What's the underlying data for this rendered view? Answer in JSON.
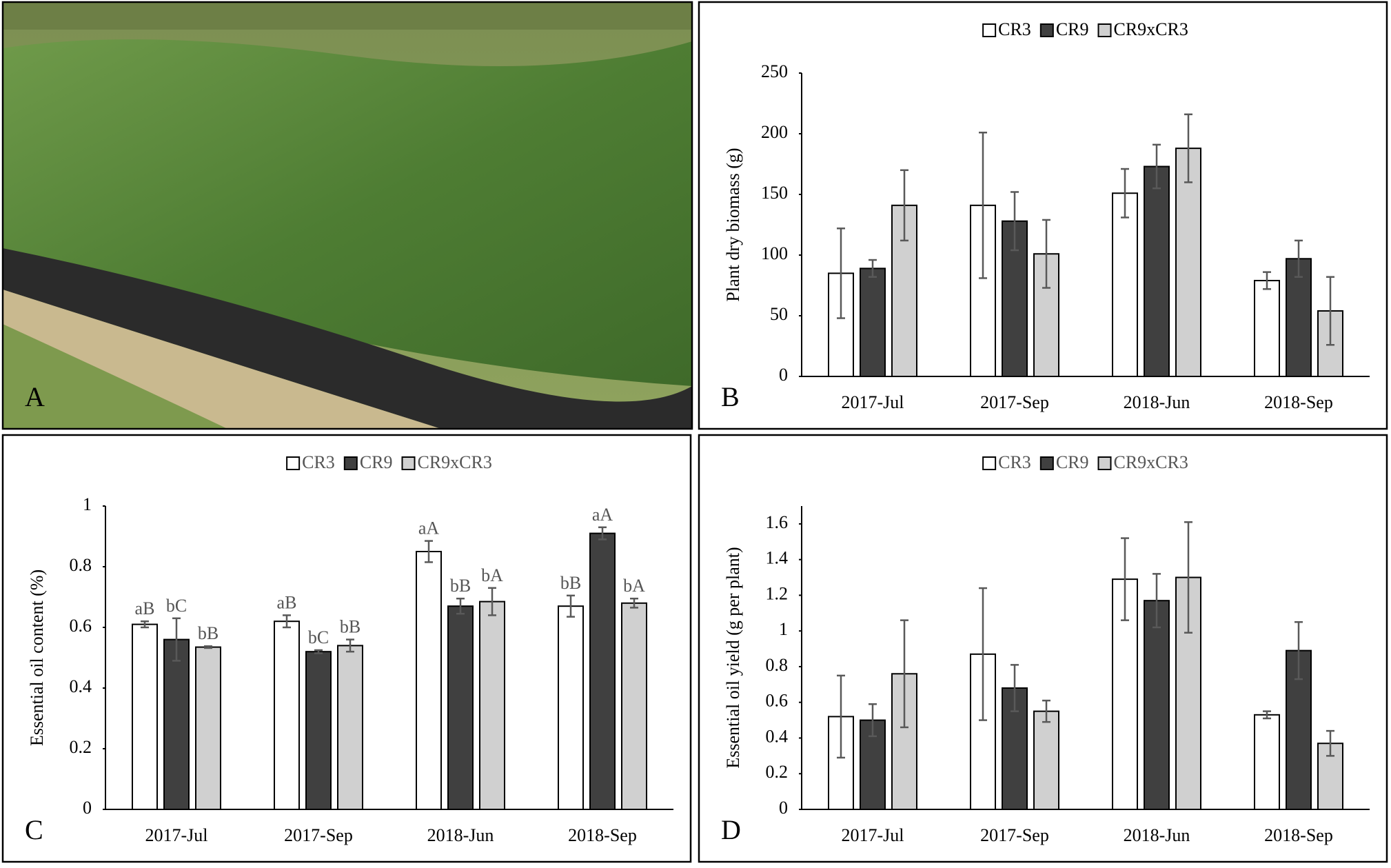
{
  "photo": {
    "label": "A"
  },
  "chart_data": [
    {
      "type": "bar",
      "panel_label": "B",
      "y_label": "Plant dry biomass (g)",
      "categories": [
        "2017-Jul",
        "2017-Sep",
        "2018-Jun",
        "2018-Sep"
      ],
      "ylim": [
        0,
        250
      ],
      "yticks": [
        0,
        50,
        100,
        150,
        200,
        250
      ],
      "legend": "top",
      "legend_text_color": "#000000",
      "error_color": "#595959",
      "series": [
        {
          "name": "CR3",
          "color": "#ffffff",
          "values": [
            85,
            141,
            151,
            79
          ],
          "errors": [
            37,
            60,
            20,
            7
          ]
        },
        {
          "name": "CR9",
          "color": "#404040",
          "values": [
            89,
            128,
            173,
            97
          ],
          "errors": [
            7,
            24,
            18,
            15
          ]
        },
        {
          "name": "CR9xCR3",
          "color": "#d0d0d0",
          "values": [
            141,
            101,
            188,
            54
          ],
          "errors": [
            29,
            28,
            28,
            28
          ]
        }
      ]
    },
    {
      "type": "bar",
      "panel_label": "C",
      "y_label": "Essential oil content (%)",
      "categories": [
        "2017-Jul",
        "2017-Sep",
        "2018-Jun",
        "2018-Sep"
      ],
      "ylim": [
        0,
        1
      ],
      "yticks": [
        0,
        0.2,
        0.4,
        0.6,
        0.8,
        1
      ],
      "legend": "top",
      "legend_text_color": "#555555",
      "error_color": "#595959",
      "series": [
        {
          "name": "CR3",
          "color": "#ffffff",
          "values": [
            0.61,
            0.62,
            0.85,
            0.67
          ],
          "errors": [
            0.01,
            0.02,
            0.035,
            0.035
          ],
          "letters": [
            "aB",
            "aB",
            "aA",
            "bB"
          ]
        },
        {
          "name": "CR9",
          "color": "#404040",
          "values": [
            0.56,
            0.52,
            0.67,
            0.91
          ],
          "errors": [
            0.07,
            0.005,
            0.025,
            0.02
          ],
          "letters": [
            "bC",
            "bC",
            "bB",
            "aA"
          ]
        },
        {
          "name": "CR9xCR3",
          "color": "#d0d0d0",
          "values": [
            0.535,
            0.54,
            0.685,
            0.68
          ],
          "errors": [
            0.003,
            0.02,
            0.045,
            0.015
          ],
          "letters": [
            "bB",
            "bB",
            "bA",
            "bA"
          ]
        }
      ]
    },
    {
      "type": "bar",
      "panel_label": "D",
      "y_label": "Essential oil yield (g per plant)",
      "categories": [
        "2017-Jul",
        "2017-Sep",
        "2018-Jun",
        "2018-Sep"
      ],
      "ylim": [
        0,
        1.7
      ],
      "yticks": [
        0,
        0.2,
        0.4,
        0.6,
        0.8,
        1,
        1.2,
        1.4,
        1.6
      ],
      "legend": "top",
      "legend_text_color": "#555555",
      "error_color": "#595959",
      "series": [
        {
          "name": "CR3",
          "color": "#ffffff",
          "values": [
            0.52,
            0.87,
            1.29,
            0.53
          ],
          "errors": [
            0.23,
            0.37,
            0.23,
            0.02
          ]
        },
        {
          "name": "CR9",
          "color": "#404040",
          "values": [
            0.5,
            0.68,
            1.17,
            0.89
          ],
          "errors": [
            0.09,
            0.13,
            0.15,
            0.16
          ]
        },
        {
          "name": "CR9xCR3",
          "color": "#d0d0d0",
          "values": [
            0.76,
            0.55,
            1.3,
            0.37
          ],
          "errors": [
            0.3,
            0.06,
            0.31,
            0.07
          ]
        }
      ]
    }
  ]
}
